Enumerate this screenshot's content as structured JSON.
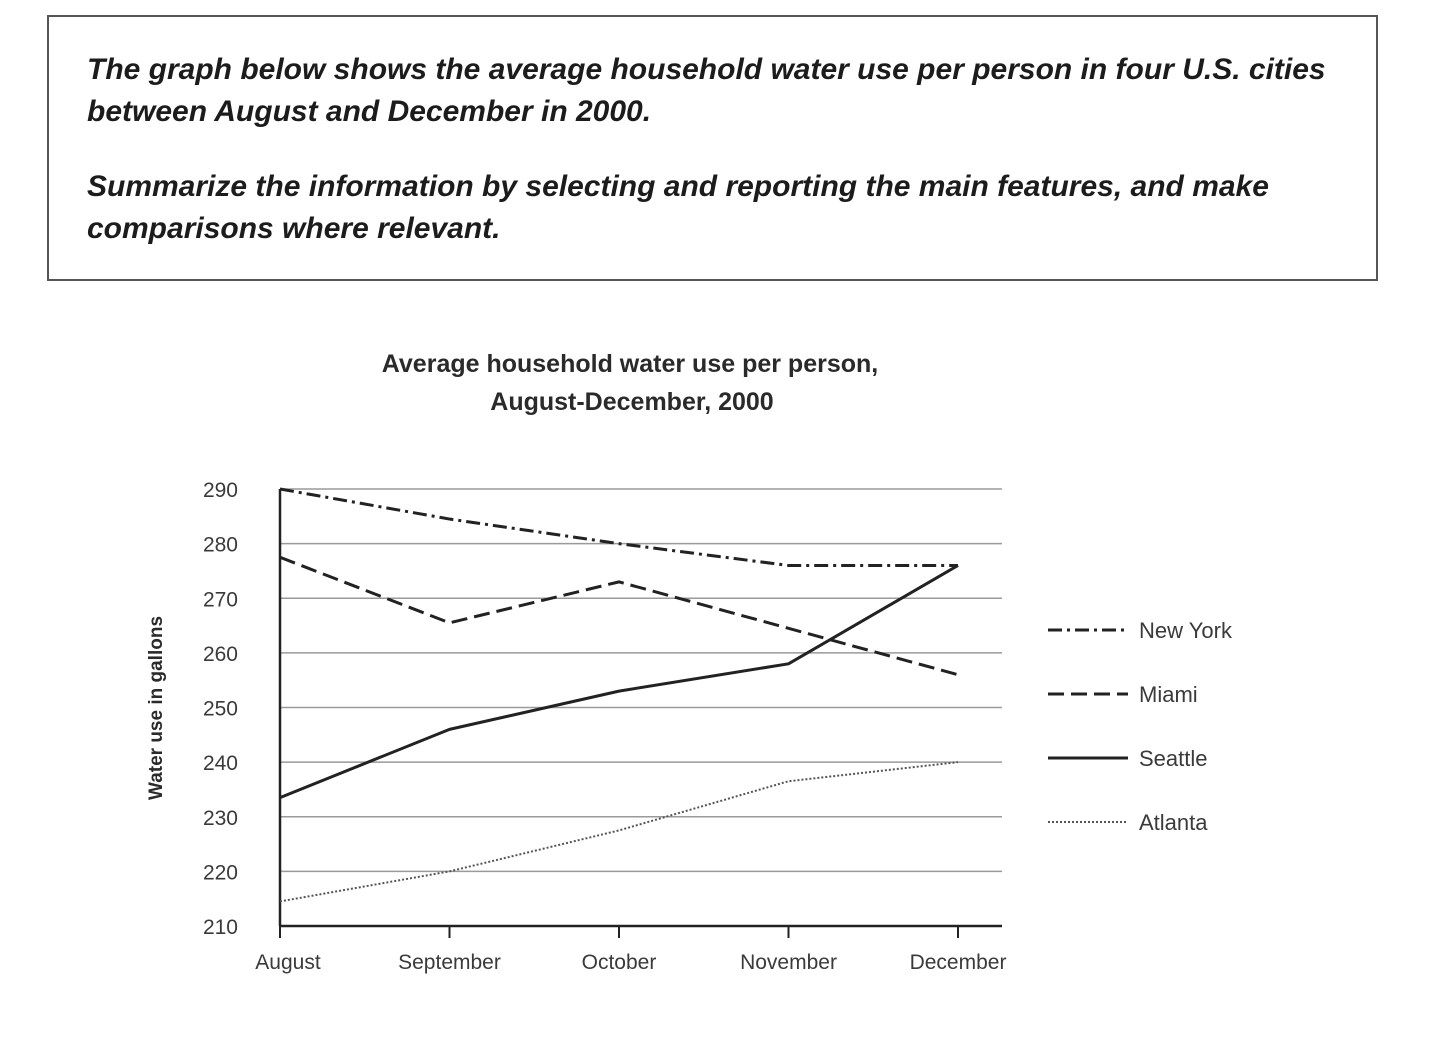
{
  "prompt": {
    "line1": "The graph below shows the average household water use per person in four U.S. cities between August and December in 2000.",
    "line2": "Summarize the information by selecting and reporting the main features, and make comparisons where relevant."
  },
  "chart_data": {
    "type": "line",
    "title_line1": "Average household water use per person,",
    "title_line2": "August-December, 2000",
    "xlabel": "",
    "ylabel": "Water use in gallons",
    "categories": [
      "August",
      "September",
      "October",
      "November",
      "December"
    ],
    "ylim": [
      210,
      290
    ],
    "yticks": [
      210,
      220,
      230,
      240,
      250,
      260,
      270,
      280,
      290
    ],
    "grid": true,
    "legend_position": "right",
    "series": [
      {
        "name": "New York",
        "style": "dash-dot",
        "color": "#222222",
        "values": [
          290,
          284.5,
          280,
          276,
          276
        ]
      },
      {
        "name": "Miami",
        "style": "dashed",
        "color": "#222222",
        "values": [
          277.5,
          265.5,
          273,
          264.5,
          256
        ]
      },
      {
        "name": "Seattle",
        "style": "solid",
        "color": "#222222",
        "values": [
          233.5,
          246,
          253,
          258,
          276
        ]
      },
      {
        "name": "Atlanta",
        "style": "dotted",
        "color": "#555555",
        "values": [
          214.5,
          220,
          227.5,
          236.5,
          240
        ]
      }
    ]
  }
}
